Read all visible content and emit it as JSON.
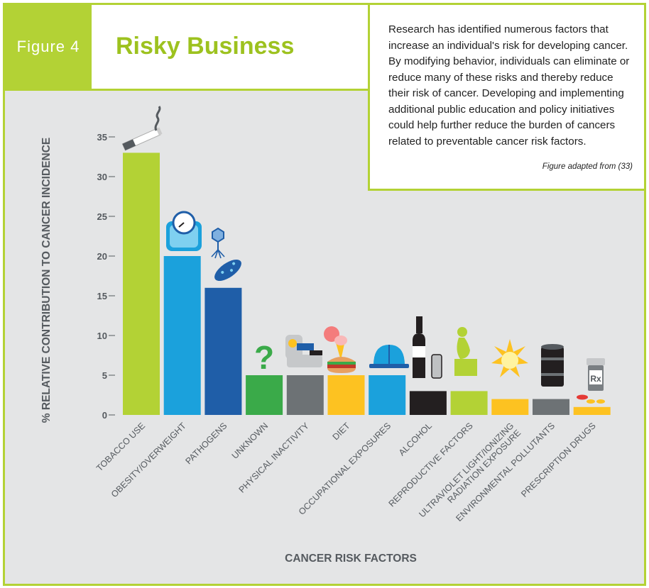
{
  "figure_label": "Figure 4",
  "title": "Risky Business",
  "description": "Research has identified numerous factors that increase an individual's risk for developing cancer. By modifying behavior, individuals can eliminate or reduce many of these risks and thereby reduce their risk of cancer. Developing and implementing additional public education and policy initiatives could help further reduce the burden of cancers related to preventable cancer risk factors.",
  "source_note": "Figure adapted from (33)",
  "colors": {
    "accent": "#b3d235",
    "panel": "#e4e5e6"
  },
  "icons": [
    "cigarette-icon",
    "scale-icon",
    "virus-icon",
    "bacterium-icon",
    "question-mark-icon",
    "couch-icon",
    "food-icon",
    "hard-hat-icon",
    "bottle-icon",
    "pregnant-woman-icon",
    "sun-icon",
    "barrel-icon",
    "pill-bottle-icon"
  ],
  "chart_data": {
    "type": "bar",
    "xlabel": "CANCER RISK FACTORS",
    "ylabel": "% RELATIVE CONTRIBUTION TO CANCER INCIDENCE",
    "ylim": [
      0,
      35
    ],
    "yticks": [
      "0",
      "5",
      "10",
      "15",
      "20",
      "25",
      "30",
      "35"
    ],
    "categories": [
      "TOBACCO USE",
      "OBESITY/OVERWEIGHT",
      "PATHOGENS",
      "UNKNOWN",
      "PHYSICAL INACTIVITY",
      "DIET",
      "OCCUPATIONAL EXPOSURES",
      "ALCOHOL",
      "REPRODUCTIVE FACTORS",
      "ULTRAVIOLET LIGHT/IONIZING RADIATION EXPOSURE",
      "ENVIRONMENTAL POLLUTANTS",
      "PRESCRIPTION DRUGS"
    ],
    "values": [
      33,
      20,
      16,
      5,
      5,
      5,
      5,
      3,
      3,
      2,
      2,
      1
    ],
    "bar_colors": [
      "#b3d235",
      "#1ba1dc",
      "#1f5ea8",
      "#3aaa49",
      "#6d7275",
      "#fdc221",
      "#1ba1dc",
      "#231f20",
      "#b3d235",
      "#fdc221",
      "#6d7275",
      "#fdc221"
    ],
    "grid": false
  }
}
